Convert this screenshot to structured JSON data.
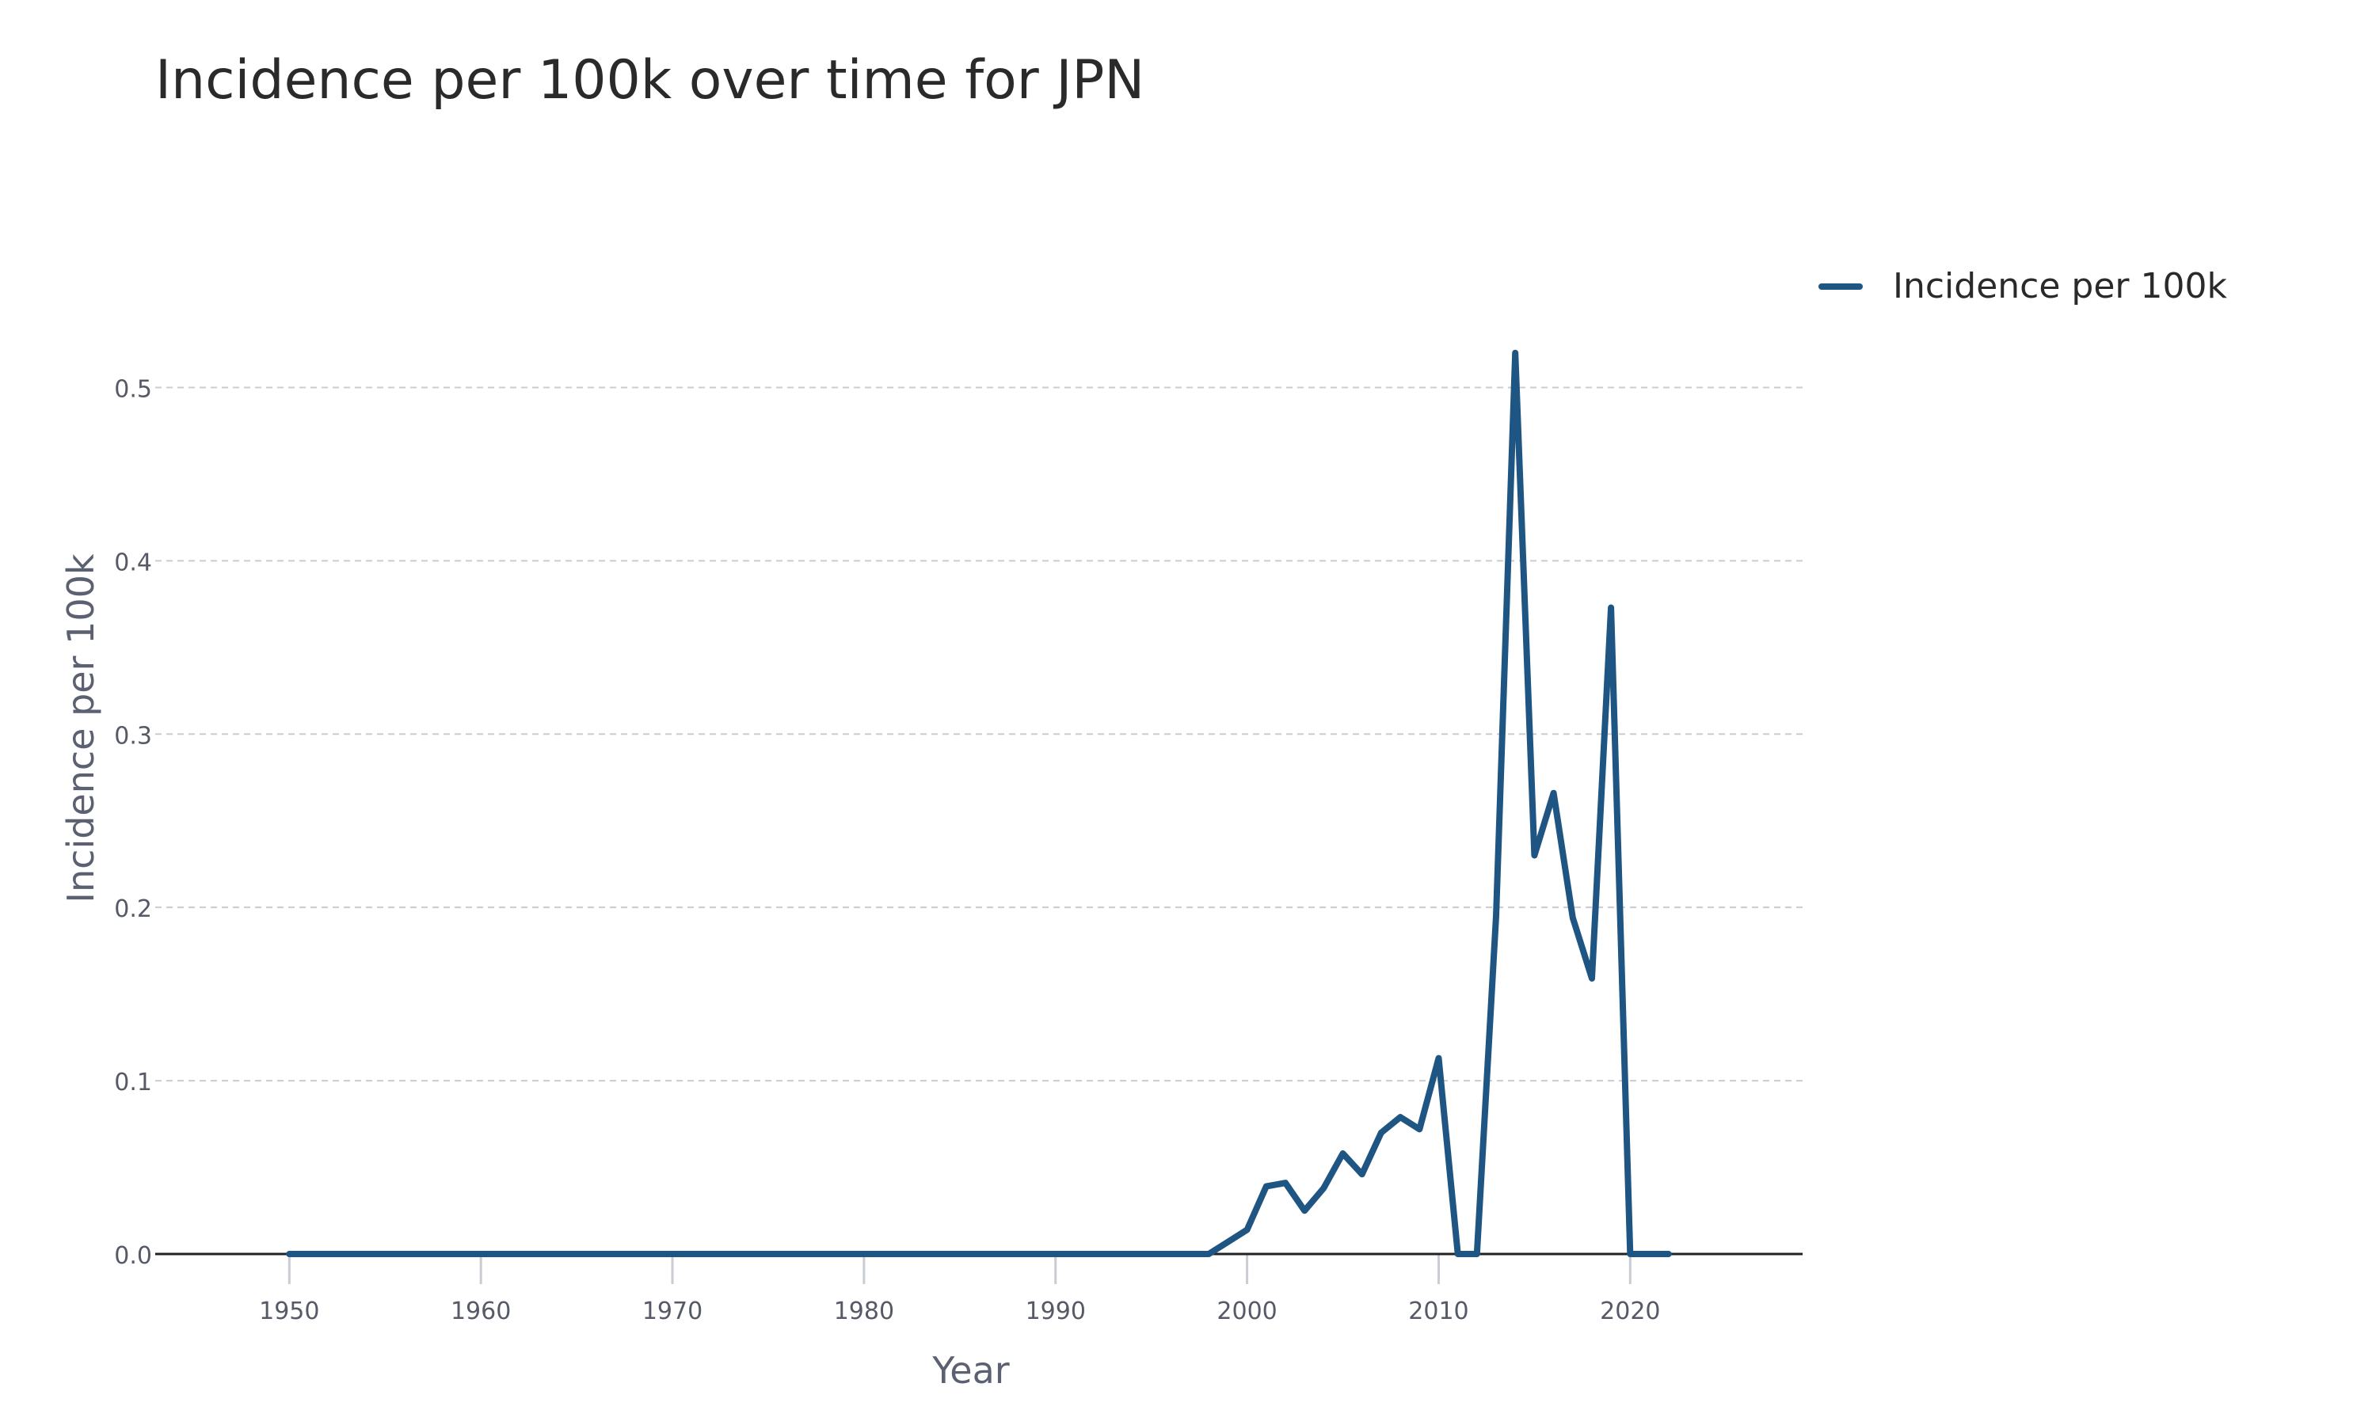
{
  "chart_data": {
    "type": "line",
    "title": "Incidence per 100k over time for JPN",
    "xlabel": "Year",
    "ylabel": "Incidence per 100k",
    "xlim": [
      1943,
      2029
    ],
    "ylim": [
      0,
      0.55
    ],
    "xticks": [
      1950,
      1960,
      1970,
      1980,
      1990,
      2000,
      2010,
      2020
    ],
    "xtick_labels": [
      "1950",
      "1960",
      "1970",
      "1980",
      "1990",
      "2000",
      "2010",
      "2020"
    ],
    "yticks": [
      0,
      0.1,
      0.2,
      0.3,
      0.4,
      0.5
    ],
    "ytick_labels": [
      "0.0",
      "0.1",
      "0.2",
      "0.3",
      "0.4",
      "0.5"
    ],
    "grid": "horizontal-dashed",
    "legend_position": "top-right-outside",
    "series": [
      {
        "name": "Incidence per 100k",
        "color": "#1f5582",
        "x": [
          1950,
          1951,
          1952,
          1953,
          1954,
          1955,
          1956,
          1957,
          1958,
          1959,
          1960,
          1961,
          1962,
          1963,
          1964,
          1965,
          1966,
          1967,
          1968,
          1969,
          1970,
          1971,
          1972,
          1973,
          1974,
          1975,
          1976,
          1977,
          1978,
          1979,
          1980,
          1981,
          1982,
          1983,
          1984,
          1985,
          1986,
          1987,
          1988,
          1989,
          1990,
          1991,
          1992,
          1993,
          1994,
          1995,
          1996,
          1997,
          1998,
          1999,
          2000,
          2001,
          2002,
          2003,
          2004,
          2005,
          2006,
          2007,
          2008,
          2009,
          2010,
          2011,
          2012,
          2013,
          2014,
          2015,
          2016,
          2017,
          2018,
          2019,
          2020,
          2021,
          2022
        ],
        "y": [
          0,
          0,
          0,
          0,
          0,
          0,
          0,
          0,
          0,
          0,
          0,
          0,
          0,
          0,
          0,
          0,
          0,
          0,
          0,
          0,
          0,
          0,
          0,
          0,
          0,
          0,
          0,
          0,
          0,
          0,
          0,
          0,
          0,
          0,
          0,
          0,
          0,
          0,
          0,
          0,
          0,
          0,
          0,
          0,
          0,
          0,
          0,
          0,
          0,
          0.007,
          0.014,
          0.039,
          0.041,
          0.025,
          0.038,
          0.058,
          0.046,
          0.07,
          0.079,
          0.072,
          0.113,
          0,
          0,
          0.195,
          0.52,
          0.23,
          0.266,
          0.194,
          0.159,
          0.373,
          0,
          0,
          0
        ]
      }
    ]
  }
}
